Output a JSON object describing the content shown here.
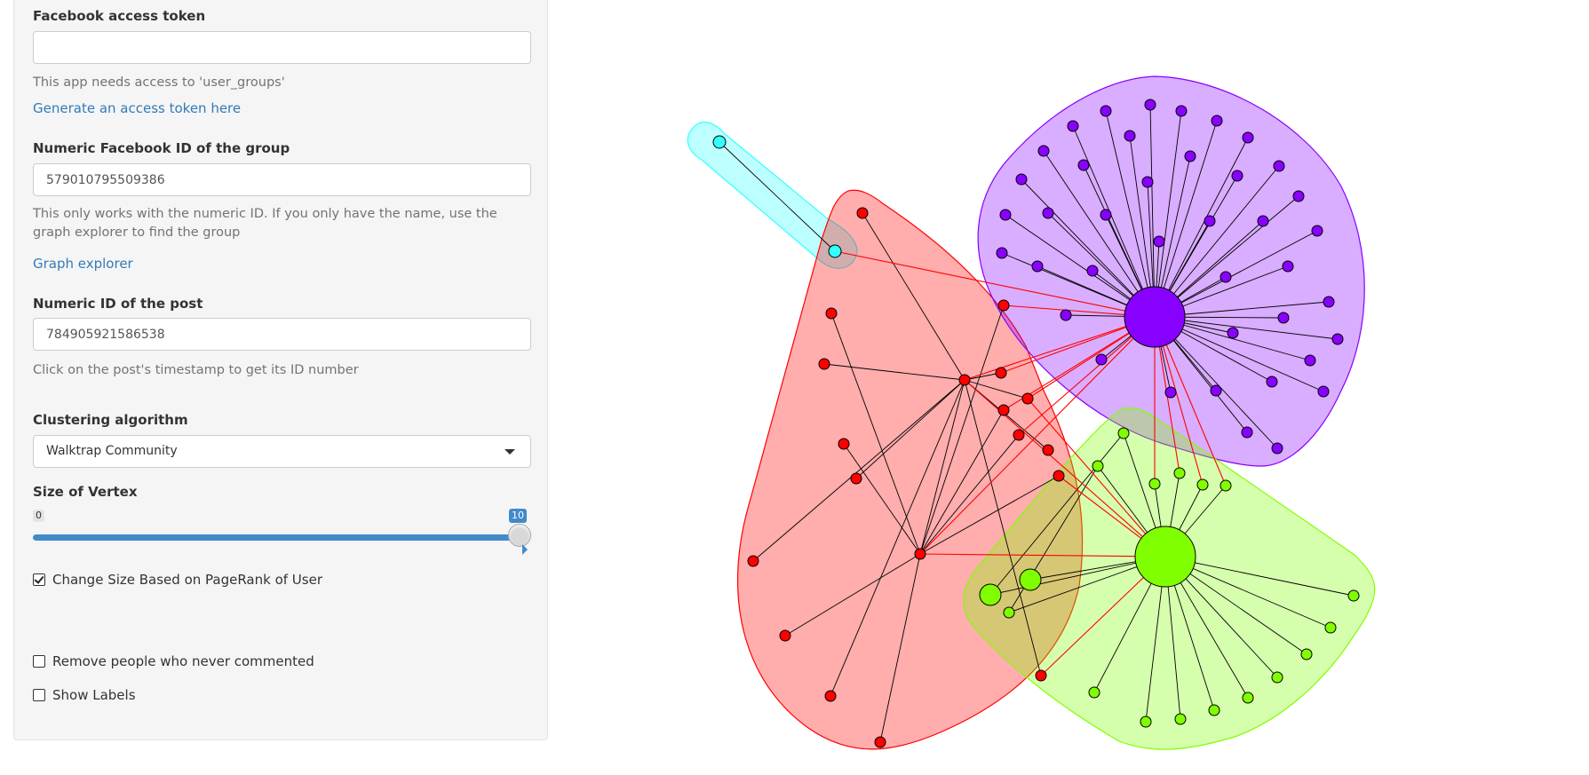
{
  "sidebar": {
    "token": {
      "label": "Facebook access token",
      "value": "",
      "help": "This app needs access to 'user_groups'",
      "link": "Generate an access token here"
    },
    "group": {
      "label": "Numeric Facebook ID of the group",
      "value": "579010795509386",
      "help": "This only works with the numeric ID. If you only have the name, use the graph explorer to find the group",
      "link": "Graph explorer"
    },
    "post": {
      "label": "Numeric ID of the post",
      "value": "784905921586538",
      "help": "Click on the post's timestamp to get its ID number"
    },
    "clustering": {
      "label": "Clustering algorithm",
      "selected": "Walktrap Community"
    },
    "vertex_size": {
      "label": "Size of Vertex",
      "min": "0",
      "max": "10",
      "value": 10
    },
    "pagerank": {
      "label": "Change Size Based on PageRank of User",
      "checked": true
    },
    "remove_noncommenters": {
      "label": "Remove people who never commented",
      "checked": false
    },
    "show_labels": {
      "label": "Show Labels",
      "checked": false
    }
  },
  "graph": {
    "colors": {
      "cyan": "#33ffff",
      "red": "#ff0000",
      "purple": "#8800ff",
      "green": "#80ff00",
      "edge": "#000000",
      "cross_edge": "#ff0000"
    }
  }
}
